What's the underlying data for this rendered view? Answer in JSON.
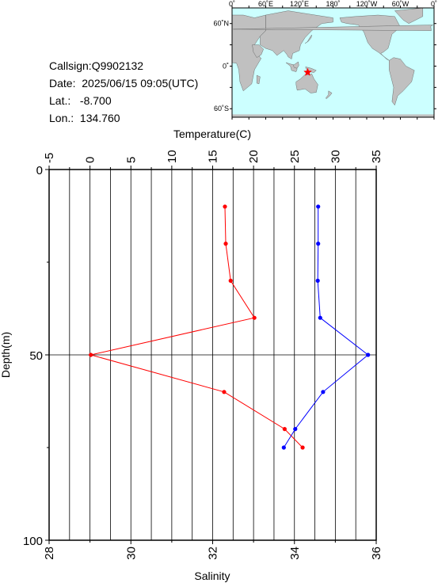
{
  "info": {
    "callsign": "Callsign:Q9902132",
    "date": "Date:  2025/06/15 09:05(UTC)",
    "lat": "Lat.:   -8.700",
    "lon": "Lon.:  134.760"
  },
  "map": {
    "lon_ticks": [
      "0˚",
      "60˚E",
      "120˚E",
      "180˚",
      "120˚W",
      "60˚W",
      "0˚"
    ],
    "lat_ticks": [
      "60˚N",
      "0˚",
      "60˚S"
    ],
    "colors": {
      "ocean": "#ccffff",
      "land": "#c0c0c0",
      "marker": "#ff0000"
    },
    "station": {
      "lat": -8.7,
      "lon": 134.76
    }
  },
  "chart_data": {
    "type": "line",
    "y_axis": {
      "label": "Depth(m)",
      "range": [
        0,
        100
      ],
      "reversed": true,
      "ticks": [
        "0",
        "50",
        "100"
      ]
    },
    "x_top": {
      "label": "Temperature(C)",
      "range": [
        -5,
        35
      ],
      "ticks": [
        "-5",
        "0",
        "5",
        "10",
        "15",
        "20",
        "25",
        "30",
        "35"
      ]
    },
    "x_bottom": {
      "label": "Salinity",
      "range": [
        28,
        36
      ],
      "ticks": [
        "28",
        "30",
        "32",
        "34",
        "36"
      ]
    },
    "grid": true,
    "series": [
      {
        "variable": "temperature",
        "color": "#ff0000",
        "depth": [
          10,
          20,
          30,
          40,
          50,
          60,
          70,
          75
        ],
        "values": [
          16.5,
          16.6,
          17.2,
          20.1,
          0.1,
          16.4,
          23.8,
          26.0
        ]
      },
      {
        "variable": "salinity",
        "color": "#0000ff",
        "depth": [
          10,
          20,
          30,
          40,
          50,
          60,
          70,
          75
        ],
        "values": [
          34.58,
          34.58,
          34.57,
          34.63,
          35.8,
          34.7,
          34.02,
          33.74
        ]
      }
    ]
  }
}
